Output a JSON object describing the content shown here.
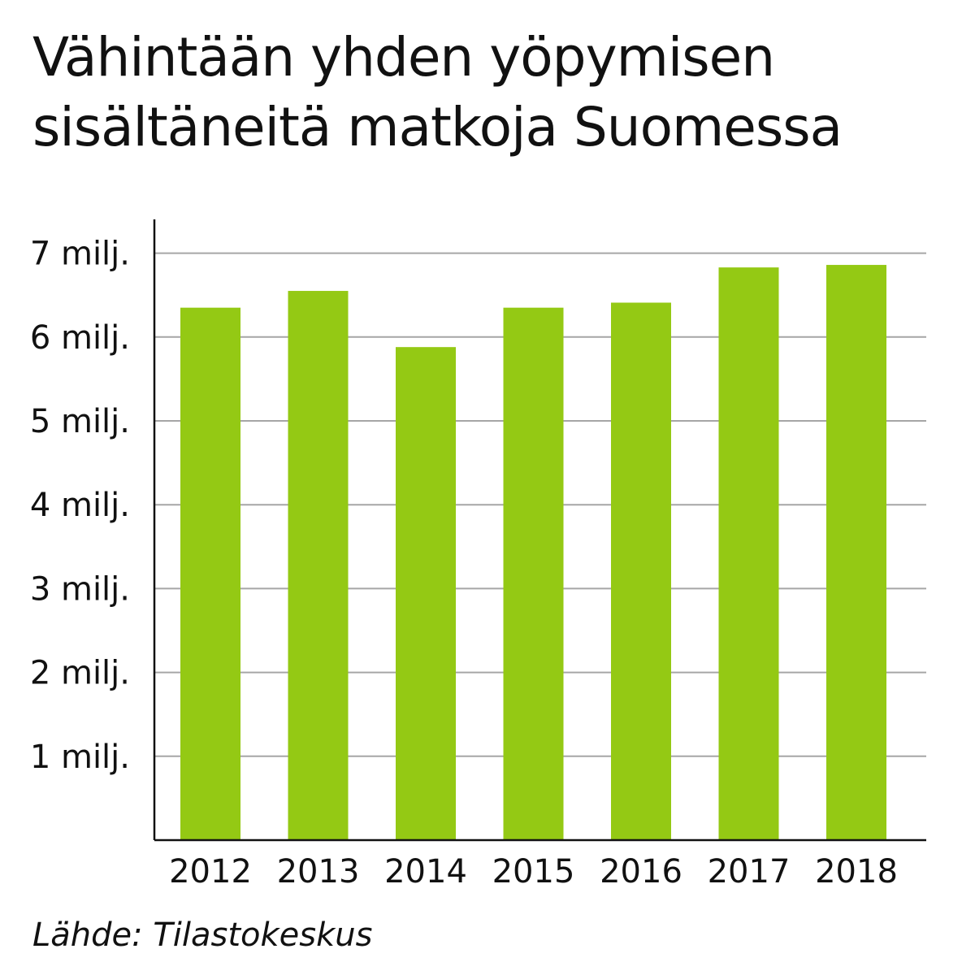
{
  "chart_data": {
    "type": "bar",
    "title_lines": [
      "Vähintään yhden yöpymisen",
      "sisältäneitä matkoja Suomessa"
    ],
    "categories": [
      "2012",
      "2013",
      "2014",
      "2015",
      "2016",
      "2017",
      "2018"
    ],
    "values": [
      6.35,
      6.55,
      5.88,
      6.35,
      6.41,
      6.83,
      6.86
    ],
    "unit": "milj.",
    "yticks": [
      {
        "value": 1,
        "label": "1 milj."
      },
      {
        "value": 2,
        "label": "2 milj."
      },
      {
        "value": 3,
        "label": "3 milj."
      },
      {
        "value": 4,
        "label": "4 milj."
      },
      {
        "value": 5,
        "label": "5 milj."
      },
      {
        "value": 6,
        "label": "6 milj."
      },
      {
        "value": 7,
        "label": "7 milj."
      }
    ],
    "ylim": [
      0,
      7.4
    ],
    "grid": true,
    "bar_color": "#94c914",
    "grid_color": "#a6a6a6",
    "axis_color": "#111111",
    "source": "Lähde: Tilastokeskus"
  }
}
